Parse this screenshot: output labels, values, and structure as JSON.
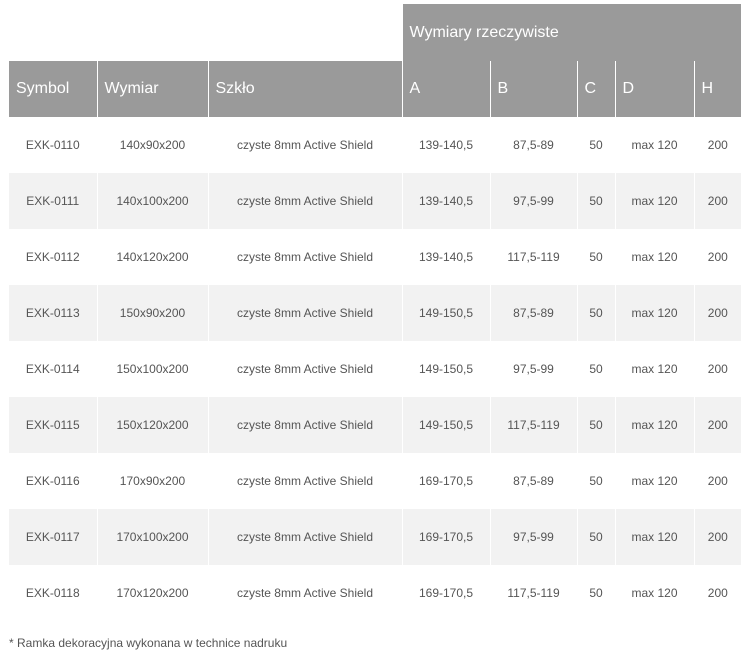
{
  "table": {
    "group_header": "Wymiary rzeczywiste",
    "columns": [
      "Symbol",
      "Wymiar",
      "Szkło",
      "A",
      "B",
      "C",
      "D",
      "H"
    ],
    "rows": [
      [
        "EXK-0110",
        "140x90x200",
        "czyste 8mm Active Shield",
        "139-140,5",
        "87,5-89",
        "50",
        "max 120",
        "200"
      ],
      [
        "EXK-0111",
        "140x100x200",
        "czyste 8mm Active Shield",
        "139-140,5",
        "97,5-99",
        "50",
        "max 120",
        "200"
      ],
      [
        "EXK-0112",
        "140x120x200",
        "czyste 8mm Active Shield",
        "139-140,5",
        "117,5-119",
        "50",
        "max 120",
        "200"
      ],
      [
        "EXK-0113",
        "150x90x200",
        "czyste 8mm Active Shield",
        "149-150,5",
        "87,5-89",
        "50",
        "max 120",
        "200"
      ],
      [
        "EXK-0114",
        "150x100x200",
        "czyste 8mm Active Shield",
        "149-150,5",
        "97,5-99",
        "50",
        "max 120",
        "200"
      ],
      [
        "EXK-0115",
        "150x120x200",
        "czyste 8mm Active Shield",
        "149-150,5",
        "117,5-119",
        "50",
        "max 120",
        "200"
      ],
      [
        "EXK-0116",
        "170x90x200",
        "czyste 8mm Active Shield",
        "169-170,5",
        "87,5-89",
        "50",
        "max 120",
        "200"
      ],
      [
        "EXK-0117",
        "170x100x200",
        "czyste 8mm Active Shield",
        "169-170,5",
        "97,5-99",
        "50",
        "max 120",
        "200"
      ],
      [
        "EXK-0118",
        "170x120x200",
        "czyste 8mm Active Shield",
        "169-170,5",
        "117,5-119",
        "50",
        "max 120",
        "200"
      ]
    ]
  },
  "footnote": "* Ramka dekoracyjna wykonana w technice nadruku",
  "colors": {
    "header_bg": "#9a9a9a",
    "header_text": "#ffffff",
    "row_alt_bg": "#f2f2f2",
    "cell_text": "#555555"
  }
}
